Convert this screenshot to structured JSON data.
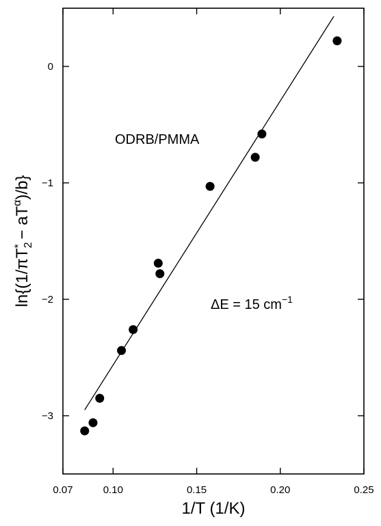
{
  "chart_data": {
    "type": "scatter",
    "title": "",
    "xlabel": "1/T (1/K)",
    "ylabel": "ln{(1/πT2* − aT^α)/b}",
    "xlim": [
      0.07,
      0.25
    ],
    "ylim": [
      -3.5,
      0.5
    ],
    "x_ticks": [
      "0.07",
      "0.10",
      "0.15",
      "0.20",
      "0.25"
    ],
    "y_ticks": [
      "0",
      "-1",
      "-2",
      "-3"
    ],
    "grid": false,
    "annotations": {
      "sample": "ODRB/PMMA",
      "energy_prefix": "ΔE = 15 cm",
      "energy_exponent": "−1"
    },
    "series": [
      {
        "type": "scatter",
        "x": [
          0.083,
          0.088,
          0.092,
          0.105,
          0.112,
          0.127,
          0.128,
          0.158,
          0.185,
          0.189,
          0.234
        ],
        "y": [
          -3.13,
          -3.06,
          -2.85,
          -2.44,
          -2.26,
          -1.69,
          -1.78,
          -1.03,
          -0.78,
          -0.58,
          0.22
        ]
      }
    ],
    "fit_line": {
      "x": [
        0.083,
        0.232
      ],
      "y": [
        -2.95,
        0.43
      ]
    }
  }
}
